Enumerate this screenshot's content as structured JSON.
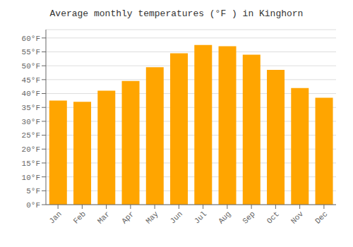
{
  "chart_data": {
    "type": "bar",
    "title": "Average monthly temperatures (°F ) in Kinghorn",
    "categories": [
      "Jan",
      "Feb",
      "Mar",
      "Apr",
      "May",
      "Jun",
      "Jul",
      "Aug",
      "Sep",
      "Oct",
      "Nov",
      "Dec"
    ],
    "values": [
      37.5,
      37.0,
      41.0,
      44.5,
      49.5,
      54.5,
      57.5,
      57.0,
      54.0,
      48.5,
      42.0,
      38.5
    ],
    "color": "#FFA500",
    "ylim": [
      0,
      63
    ],
    "yticks": [
      {
        "value": 0,
        "label": "0°F"
      },
      {
        "value": 5,
        "label": "5°F"
      },
      {
        "value": 10,
        "label": "10°F"
      },
      {
        "value": 15,
        "label": "15°F"
      },
      {
        "value": 20,
        "label": "20°F"
      },
      {
        "value": 25,
        "label": "25°F"
      },
      {
        "value": 30,
        "label": "30°F"
      },
      {
        "value": 35,
        "label": "35°F"
      },
      {
        "value": 40,
        "label": "40°F"
      },
      {
        "value": 45,
        "label": "45°F"
      },
      {
        "value": 50,
        "label": "50°F"
      },
      {
        "value": 55,
        "label": "55°F"
      },
      {
        "value": 60,
        "label": "60°F"
      }
    ],
    "grid": true
  }
}
